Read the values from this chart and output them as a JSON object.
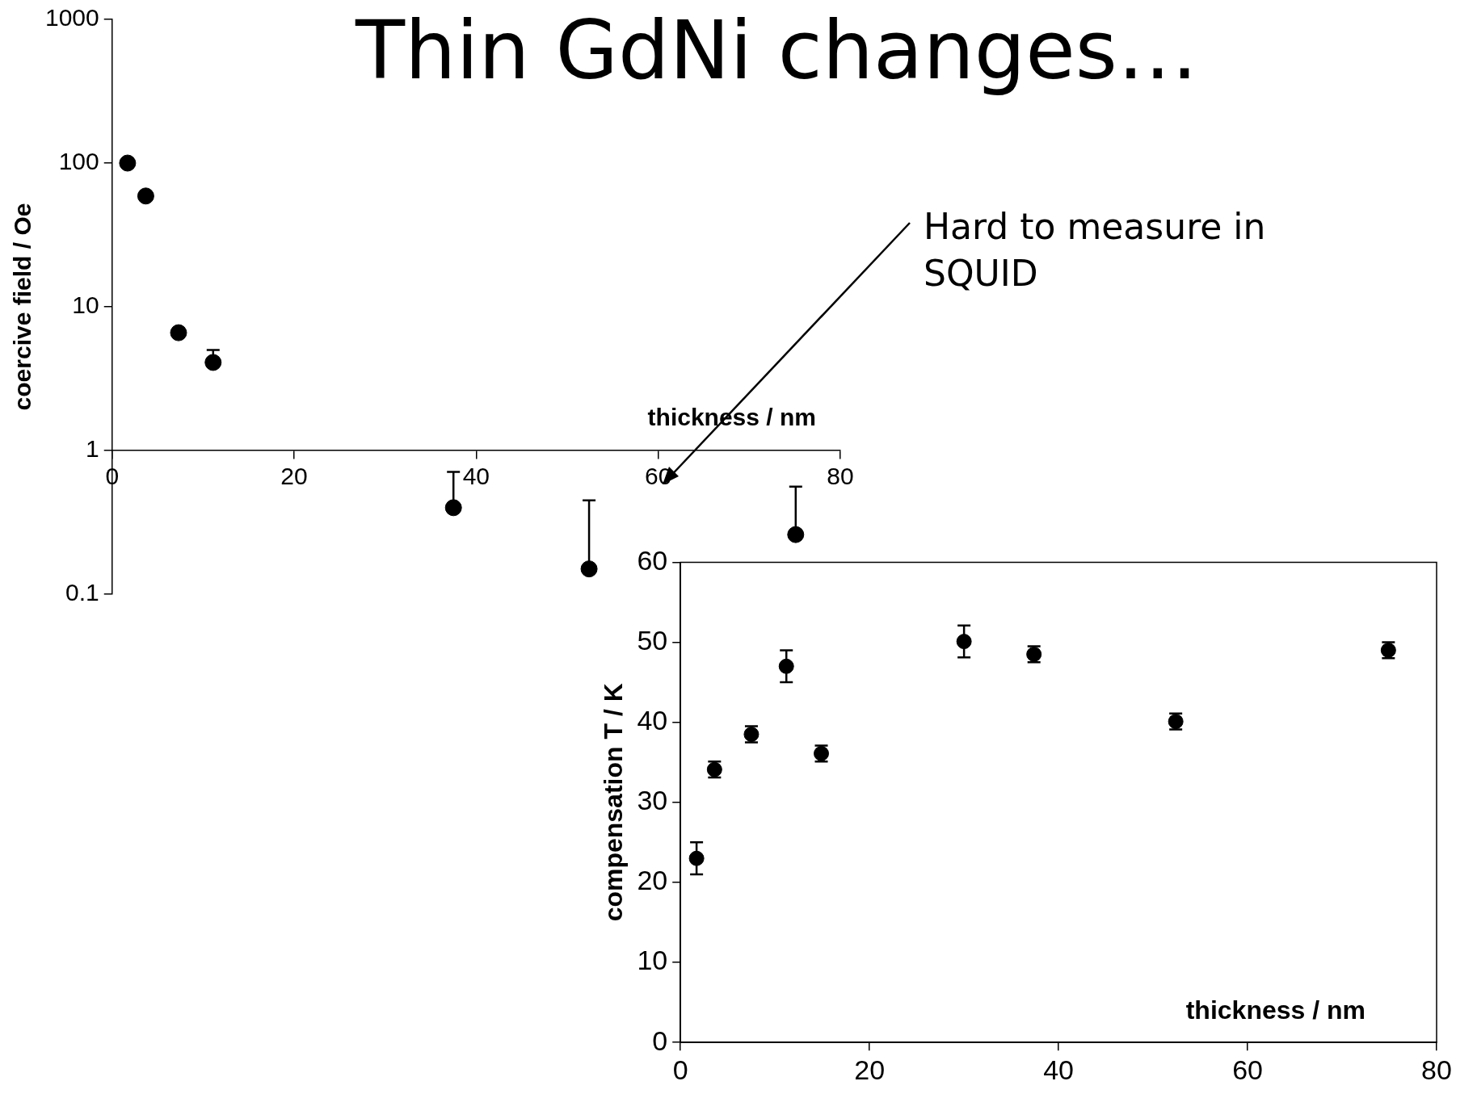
{
  "chart_data": [
    {
      "type": "scatter",
      "title": "Thin GdNi changes…",
      "xlabel": "thickness / nm",
      "ylabel": "coercive field / Oe",
      "annotations": [
        "Hard to measure in\nSQUID"
      ],
      "x": [
        1.7,
        3.7,
        7.3,
        11.1,
        37.5,
        52.4,
        75.1
      ],
      "series": [
        {
          "color": "#000000",
          "values": [
            100,
            59,
            6.6,
            4.1,
            0.4,
            0.15,
            0.26
          ],
          "errors": [
            null,
            null,
            null,
            [
              4.1,
              5.0
            ],
            [
              0.4,
              0.71
            ],
            [
              0.15,
              0.45
            ],
            [
              0.26,
              0.56
            ]
          ]
        }
      ],
      "log": "y",
      "xlim": [
        0,
        80
      ],
      "xticks": [
        0,
        20,
        40,
        60,
        80
      ],
      "ylim": [
        0.1,
        1000
      ],
      "yticks": [
        0.1,
        1,
        10,
        100,
        1000
      ],
      "grid": false,
      "legend": false,
      "marker": "circle"
    },
    {
      "type": "scatter",
      "xlabel": "thickness / nm",
      "ylabel": "compensation T / K",
      "x": [
        1.7,
        3.6,
        7.5,
        11.2,
        14.9,
        30.0,
        37.4,
        52.4,
        74.9
      ],
      "series": [
        {
          "color": "#000000",
          "values": [
            23.0,
            34.1,
            38.5,
            47.0,
            36.1,
            50.1,
            48.5,
            40.1,
            49.0
          ],
          "errors": [
            2,
            1,
            1,
            2,
            1,
            2,
            1,
            1,
            1
          ]
        }
      ],
      "xlim": [
        0,
        80
      ],
      "xticks": [
        0,
        20,
        40,
        60,
        80
      ],
      "ylim": [
        0,
        60
      ],
      "yticks": [
        0,
        10,
        20,
        30,
        40,
        50,
        60
      ],
      "grid": false,
      "legend": false,
      "marker": "circle"
    }
  ]
}
